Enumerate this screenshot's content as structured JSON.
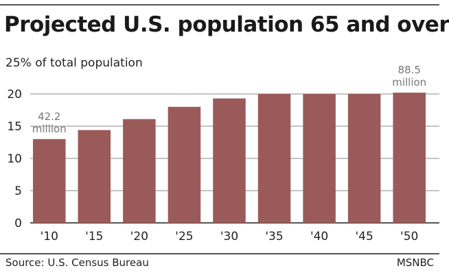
{
  "title": "Projected U.S. population 65 and over",
  "source": "Source: U.S. Census Bureau",
  "credit": "MSNBC",
  "colors": {
    "bar": "#9b5a5a",
    "grid": "#888888",
    "axis": "#555555",
    "label": "#777777"
  },
  "chart_data": {
    "type": "bar",
    "title": "Projected U.S. population 65 and over",
    "ylabel": "25% of total population",
    "xlabel": "",
    "categories": [
      "'10",
      "'15",
      "'20",
      "'25",
      "'30",
      "'35",
      "'40",
      "'45",
      "'50"
    ],
    "values": [
      13,
      14.4,
      16.1,
      18,
      19.3,
      20,
      20,
      20,
      20.2
    ],
    "ylim": [
      0,
      25
    ],
    "yticks": [
      0,
      5,
      10,
      15,
      20
    ],
    "grid": true,
    "annotations": [
      {
        "index": 0,
        "lines": [
          "42.2",
          "million"
        ]
      },
      {
        "index": 8,
        "lines": [
          "88.5",
          "million"
        ]
      }
    ]
  }
}
